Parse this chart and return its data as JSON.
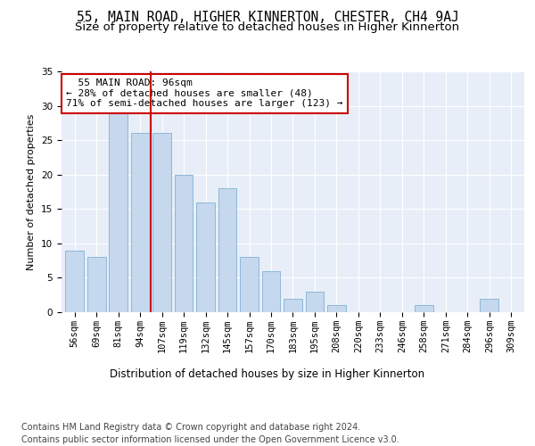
{
  "title1": "55, MAIN ROAD, HIGHER KINNERTON, CHESTER, CH4 9AJ",
  "title2": "Size of property relative to detached houses in Higher Kinnerton",
  "xlabel": "Distribution of detached houses by size in Higher Kinnerton",
  "ylabel": "Number of detached properties",
  "bar_labels": [
    "56sqm",
    "69sqm",
    "81sqm",
    "94sqm",
    "107sqm",
    "119sqm",
    "132sqm",
    "145sqm",
    "157sqm",
    "170sqm",
    "183sqm",
    "195sqm",
    "208sqm",
    "220sqm",
    "233sqm",
    "246sqm",
    "258sqm",
    "271sqm",
    "284sqm",
    "296sqm",
    "309sqm"
  ],
  "bar_values": [
    9,
    8,
    29,
    26,
    26,
    20,
    16,
    18,
    8,
    6,
    2,
    3,
    1,
    0,
    0,
    0,
    1,
    0,
    0,
    2,
    0
  ],
  "bar_color": "#c5d8ed",
  "bar_edge_color": "#8db8d8",
  "vline_x": 3.5,
  "vline_color": "#cc0000",
  "annotation_text": "  55 MAIN ROAD: 96sqm\n← 28% of detached houses are smaller (48)\n71% of semi-detached houses are larger (123) →",
  "annotation_box_color": "#ffffff",
  "annotation_box_edge": "#cc0000",
  "ylim": [
    0,
    35
  ],
  "yticks": [
    0,
    5,
    10,
    15,
    20,
    25,
    30,
    35
  ],
  "bg_color": "#e8eef8",
  "footer": "Contains HM Land Registry data © Crown copyright and database right 2024.\nContains public sector information licensed under the Open Government Licence v3.0.",
  "title1_fontsize": 10.5,
  "title2_fontsize": 9.5,
  "xlabel_fontsize": 8.5,
  "ylabel_fontsize": 8,
  "tick_fontsize": 7.5,
  "annot_fontsize": 8,
  "footer_fontsize": 7
}
